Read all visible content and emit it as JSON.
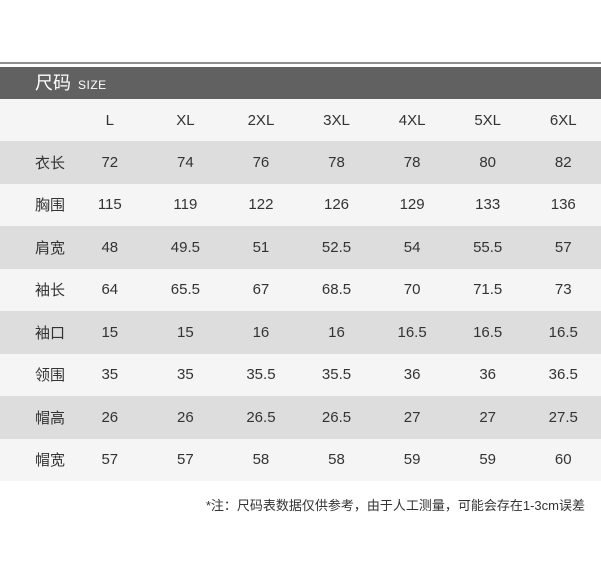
{
  "chart_data": {
    "type": "table",
    "title": "尺码",
    "subtitle": "SIZE",
    "columns": [
      "L",
      "XL",
      "2XL",
      "3XL",
      "4XL",
      "5XL",
      "6XL"
    ],
    "rows": [
      {
        "label": "衣长",
        "values": [
          "72",
          "74",
          "76",
          "78",
          "78",
          "80",
          "82"
        ]
      },
      {
        "label": "胸围",
        "values": [
          "115",
          "119",
          "122",
          "126",
          "129",
          "133",
          "136"
        ]
      },
      {
        "label": "肩宽",
        "values": [
          "48",
          "49.5",
          "51",
          "52.5",
          "54",
          "55.5",
          "57"
        ]
      },
      {
        "label": "袖长",
        "values": [
          "64",
          "65.5",
          "67",
          "68.5",
          "70",
          "71.5",
          "73"
        ]
      },
      {
        "label": "袖口",
        "values": [
          "15",
          "15",
          "16",
          "16",
          "16.5",
          "16.5",
          "16.5"
        ]
      },
      {
        "label": "领围",
        "values": [
          "35",
          "35",
          "35.5",
          "35.5",
          "36",
          "36",
          "36.5"
        ]
      },
      {
        "label": "帽高",
        "values": [
          "26",
          "26",
          "26.5",
          "26.5",
          "27",
          "27",
          "27.5"
        ]
      },
      {
        "label": "帽宽",
        "values": [
          "57",
          "57",
          "58",
          "58",
          "59",
          "59",
          "60"
        ]
      }
    ],
    "note": "*注：尺码表数据仅供参考，由于人工测量，可能会存在1-3cm误差"
  },
  "colors": {
    "header_bg": "#616161",
    "row_gray": "#dcdddc",
    "row_light": "#f4f5f4",
    "divider": "#8f8f8f",
    "text": "#333333",
    "title_text": "#ffffff",
    "page_bg": "#ffffff"
  }
}
